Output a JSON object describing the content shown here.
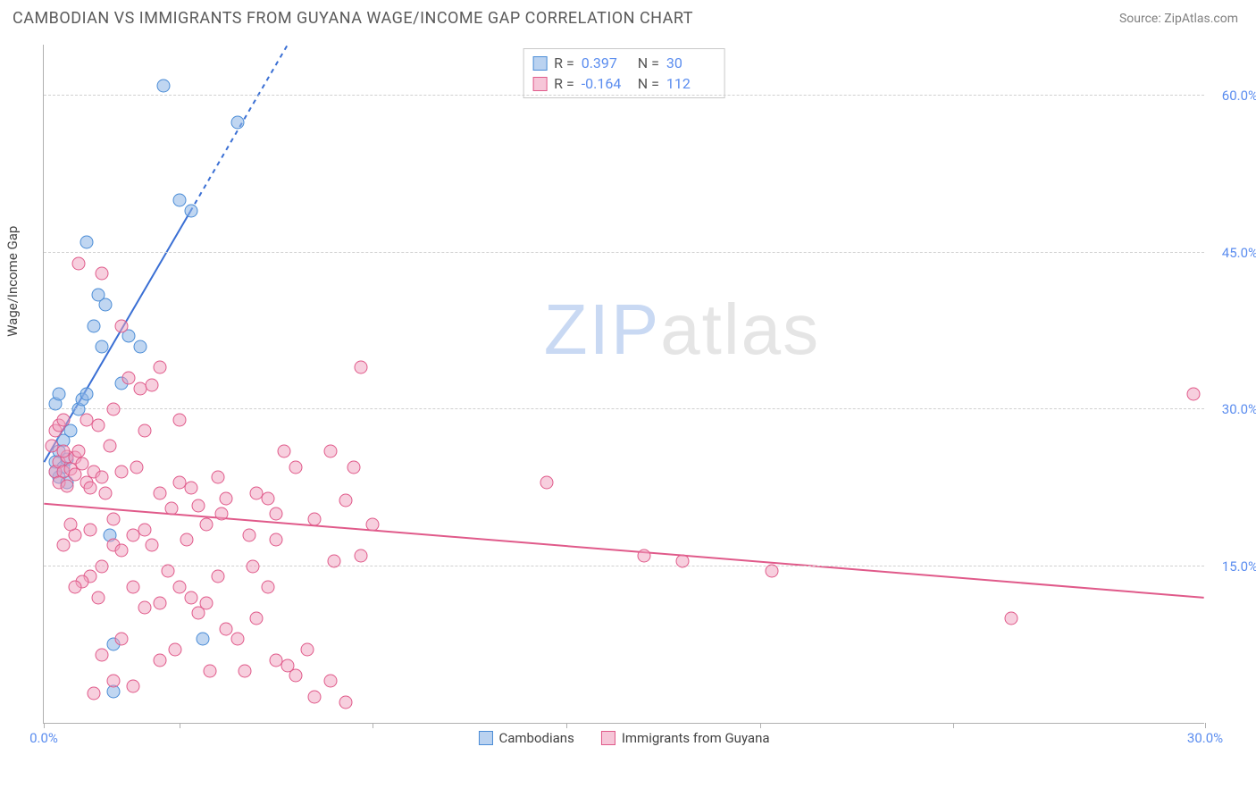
{
  "header": {
    "title": "CAMBODIAN VS IMMIGRANTS FROM GUYANA WAGE/INCOME GAP CORRELATION CHART",
    "source": "Source: ZipAtlas.com"
  },
  "chart": {
    "type": "scatter",
    "y_axis_label": "Wage/Income Gap",
    "xlim": [
      0,
      30
    ],
    "ylim": [
      0,
      65
    ],
    "xticks": [
      0,
      3.5,
      8.5,
      13.5,
      18.5,
      23.5,
      30
    ],
    "xtick_labels": {
      "0": "0.0%",
      "30": "30.0%"
    },
    "yticks": [
      15,
      30,
      45,
      60
    ],
    "ytick_labels": [
      "15.0%",
      "30.0%",
      "45.0%",
      "60.0%"
    ],
    "grid_color": "#d0d0d0",
    "background_color": "#ffffff",
    "axis_color": "#b0b0b0",
    "tick_label_color": "#5b8def",
    "watermark": {
      "part1": "ZIP",
      "part2": "atlas"
    },
    "series": [
      {
        "name": "Cambodians",
        "color_fill": "rgba(140,180,230,0.55)",
        "color_stroke": "#4a8cd6",
        "marker_radius": 7.5,
        "R": "0.397",
        "N": "30",
        "trend": {
          "x1": 0,
          "y1": 25,
          "x2": 6.3,
          "y2": 65,
          "color": "#3a6fd4",
          "width": 2,
          "dash_beyond": 49
        },
        "points": [
          [
            0.3,
            25
          ],
          [
            0.4,
            26
          ],
          [
            0.5,
            24.5
          ],
          [
            0.6,
            25.2
          ],
          [
            0.5,
            27
          ],
          [
            0.4,
            23.5
          ],
          [
            0.7,
            28
          ],
          [
            0.9,
            30
          ],
          [
            1.0,
            31
          ],
          [
            1.1,
            31.5
          ],
          [
            1.3,
            38
          ],
          [
            1.6,
            40
          ],
          [
            1.5,
            36
          ],
          [
            2.2,
            37
          ],
          [
            2.5,
            36
          ],
          [
            1.1,
            46
          ],
          [
            1.4,
            41
          ],
          [
            3.1,
            61
          ],
          [
            5.0,
            57.5
          ],
          [
            3.5,
            50
          ],
          [
            3.8,
            49
          ],
          [
            2.0,
            32.5
          ],
          [
            1.8,
            7.5
          ],
          [
            4.1,
            8
          ],
          [
            0.3,
            30.5
          ],
          [
            0.4,
            31.5
          ],
          [
            0.6,
            23
          ],
          [
            1.7,
            18
          ],
          [
            0.3,
            24
          ],
          [
            1.8,
            3
          ]
        ]
      },
      {
        "name": "Immigrants from Guyana",
        "color_fill": "rgba(240,160,190,0.5)",
        "color_stroke": "#e05a8a",
        "marker_radius": 7.5,
        "R": "-0.164",
        "N": "112",
        "trend": {
          "x1": 0,
          "y1": 21,
          "x2": 30,
          "y2": 12,
          "color": "#e05a8a",
          "width": 2
        },
        "points": [
          [
            0.3,
            24
          ],
          [
            0.4,
            25
          ],
          [
            0.5,
            24
          ],
          [
            0.6,
            25.5
          ],
          [
            0.5,
            26
          ],
          [
            0.7,
            24.3
          ],
          [
            0.8,
            25.4
          ],
          [
            0.9,
            26
          ],
          [
            1.0,
            24.8
          ],
          [
            0.4,
            23
          ],
          [
            0.6,
            22.7
          ],
          [
            0.8,
            23.8
          ],
          [
            1.1,
            23
          ],
          [
            1.2,
            22.5
          ],
          [
            1.3,
            24
          ],
          [
            1.5,
            23.5
          ],
          [
            1.7,
            26.5
          ],
          [
            1.6,
            22
          ],
          [
            1.4,
            28.5
          ],
          [
            1.1,
            29
          ],
          [
            1.5,
            43
          ],
          [
            2.0,
            38
          ],
          [
            2.2,
            33
          ],
          [
            2.5,
            32
          ],
          [
            2.8,
            32.3
          ],
          [
            2.6,
            28
          ],
          [
            1.8,
            30
          ],
          [
            3.0,
            34
          ],
          [
            3.3,
            20.5
          ],
          [
            3.5,
            23
          ],
          [
            3.8,
            22.5
          ],
          [
            4.0,
            20.8
          ],
          [
            4.2,
            19
          ],
          [
            4.5,
            23.5
          ],
          [
            4.7,
            21.5
          ],
          [
            4.6,
            20
          ],
          [
            5.5,
            22
          ],
          [
            5.8,
            21.5
          ],
          [
            6.0,
            20
          ],
          [
            6.2,
            26
          ],
          [
            6.5,
            24.5
          ],
          [
            5.3,
            18
          ],
          [
            7.0,
            19.5
          ],
          [
            7.4,
            26
          ],
          [
            7.8,
            21.3
          ],
          [
            8.0,
            24.5
          ],
          [
            8.5,
            19
          ],
          [
            8.2,
            34
          ],
          [
            6.0,
            17.5
          ],
          [
            2.3,
            18
          ],
          [
            2.6,
            18.5
          ],
          [
            1.8,
            17
          ],
          [
            2.0,
            16.5
          ],
          [
            1.5,
            15
          ],
          [
            1.2,
            14
          ],
          [
            1.0,
            13.5
          ],
          [
            1.4,
            12
          ],
          [
            0.8,
            13
          ],
          [
            2.3,
            13
          ],
          [
            2.6,
            11
          ],
          [
            3.0,
            11.5
          ],
          [
            3.2,
            14.5
          ],
          [
            3.5,
            13
          ],
          [
            3.8,
            12
          ],
          [
            4.0,
            10.5
          ],
          [
            4.2,
            11.5
          ],
          [
            4.5,
            14
          ],
          [
            4.7,
            9
          ],
          [
            5.0,
            8
          ],
          [
            5.2,
            5
          ],
          [
            5.5,
            10
          ],
          [
            5.8,
            13
          ],
          [
            6.0,
            6
          ],
          [
            6.3,
            5.5
          ],
          [
            6.5,
            4.5
          ],
          [
            6.8,
            7
          ],
          [
            7.0,
            2.5
          ],
          [
            7.4,
            4
          ],
          [
            7.8,
            2
          ],
          [
            3.0,
            6
          ],
          [
            3.4,
            7
          ],
          [
            2.0,
            8
          ],
          [
            1.5,
            6.5
          ],
          [
            1.8,
            4
          ],
          [
            1.3,
            2.8
          ],
          [
            2.3,
            3.5
          ],
          [
            0.8,
            18
          ],
          [
            0.5,
            17
          ],
          [
            1.2,
            18.5
          ],
          [
            1.8,
            19.5
          ],
          [
            3.7,
            17.5
          ],
          [
            5.4,
            15
          ],
          [
            7.5,
            15.5
          ],
          [
            8.2,
            16
          ],
          [
            13.0,
            23
          ],
          [
            15.5,
            16
          ],
          [
            16.5,
            15.5
          ],
          [
            18.8,
            14.5
          ],
          [
            25.0,
            10
          ],
          [
            29.7,
            31.5
          ],
          [
            0.3,
            28
          ],
          [
            0.4,
            28.5
          ],
          [
            0.2,
            26.5
          ],
          [
            0.5,
            29
          ],
          [
            2.0,
            24
          ],
          [
            2.4,
            24.5
          ],
          [
            4.3,
            5
          ],
          [
            3.0,
            22
          ],
          [
            3.5,
            29
          ],
          [
            0.9,
            44
          ],
          [
            0.7,
            19
          ],
          [
            2.8,
            17
          ]
        ]
      }
    ],
    "legend_stats": {
      "r_label": "R =",
      "n_label": "N ="
    },
    "bottom_legend": [
      {
        "label": "Cambodians",
        "swatch": "blue"
      },
      {
        "label": "Immigrants from Guyana",
        "swatch": "pink"
      }
    ]
  }
}
